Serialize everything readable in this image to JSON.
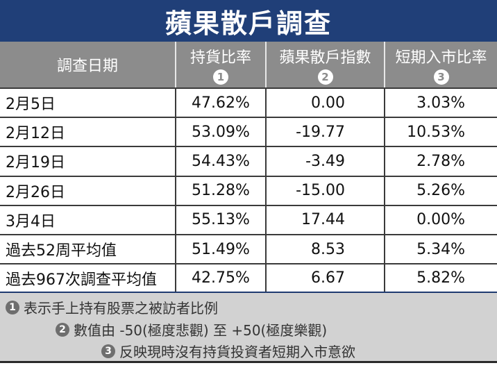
{
  "title": "蘋果散戶調查",
  "columns": [
    {
      "label": "調查日期",
      "badge": ""
    },
    {
      "label": "持貨比率",
      "badge": "1"
    },
    {
      "label": "蘋果散戶指數",
      "badge": "2"
    },
    {
      "label": "短期入市比率",
      "badge": "3"
    }
  ],
  "rows": [
    [
      "2月5日",
      "47.62%",
      "0.00",
      "3.03%"
    ],
    [
      "2月12日",
      "53.09%",
      "-19.77",
      "10.53%"
    ],
    [
      "2月19日",
      "54.43%",
      "-3.49",
      "2.78%"
    ],
    [
      "2月26日",
      "51.28%",
      "-15.00",
      "5.26%"
    ],
    [
      "3月4日",
      "55.13%",
      "17.44",
      "0.00%"
    ],
    [
      "過去52周平均值",
      "51.49%",
      "8.53",
      "5.34%"
    ],
    [
      "過去967次調查平均值",
      "42.75%",
      "6.67",
      "5.82%"
    ]
  ],
  "notes": [
    {
      "badge": "1",
      "text": "表示手上持有股票之被訪者比例"
    },
    {
      "badge": "2",
      "text": "數值由 -50(極度悲觀) 至 +50(極度樂觀)"
    },
    {
      "badge": "3",
      "text": "反映現時沒有持貨投資者短期入市意欲"
    }
  ],
  "colors": {
    "title_bg": "#203f78",
    "header_bg": "#8c8c8c",
    "footer_bg": "#d2d2d2"
  }
}
